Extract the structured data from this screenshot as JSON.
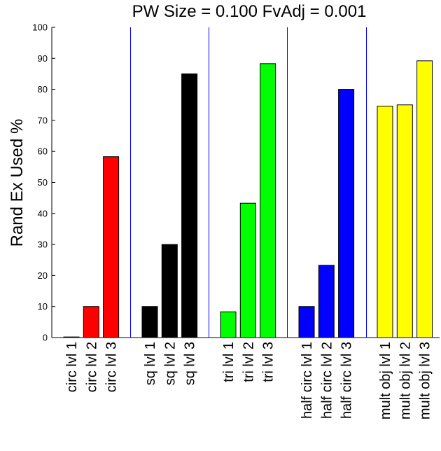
{
  "chart_data": {
    "type": "bar",
    "title": "PW Size = 0.100 FvAdj = 0.001",
    "xlabel": "",
    "ylabel": "Rand Ex Used %",
    "ylim": [
      0,
      100
    ],
    "yticks": [
      0,
      10,
      20,
      30,
      40,
      50,
      60,
      70,
      80,
      90,
      100
    ],
    "grid": false,
    "groups": [
      {
        "color": "#ff0000",
        "categories": [
          "circ lvl 1",
          "circ lvl 2",
          "circ lvl 3"
        ],
        "values": [
          0.2,
          10,
          58.3
        ]
      },
      {
        "color": "#000000",
        "categories": [
          "sq lvl 1",
          "sq lvl 2",
          "sq lvl 3"
        ],
        "values": [
          10,
          30,
          85
        ]
      },
      {
        "color": "#00ff00",
        "categories": [
          "tri lvl 1",
          "tri lvl 2",
          "tri lvl 3"
        ],
        "values": [
          8.3,
          43.3,
          88.3
        ]
      },
      {
        "color": "#0000ff",
        "categories": [
          "half circ lvl 1",
          "half circ lvl 2",
          "half circ lvl 3"
        ],
        "values": [
          10,
          23.3,
          80
        ]
      },
      {
        "color": "#ffff00",
        "categories": [
          "mult obj lvl 1",
          "mult obj lvl 2",
          "mult obj lvl 3"
        ],
        "values": [
          74.6,
          75,
          89.2
        ]
      }
    ],
    "separator_color": "#0000ff"
  }
}
